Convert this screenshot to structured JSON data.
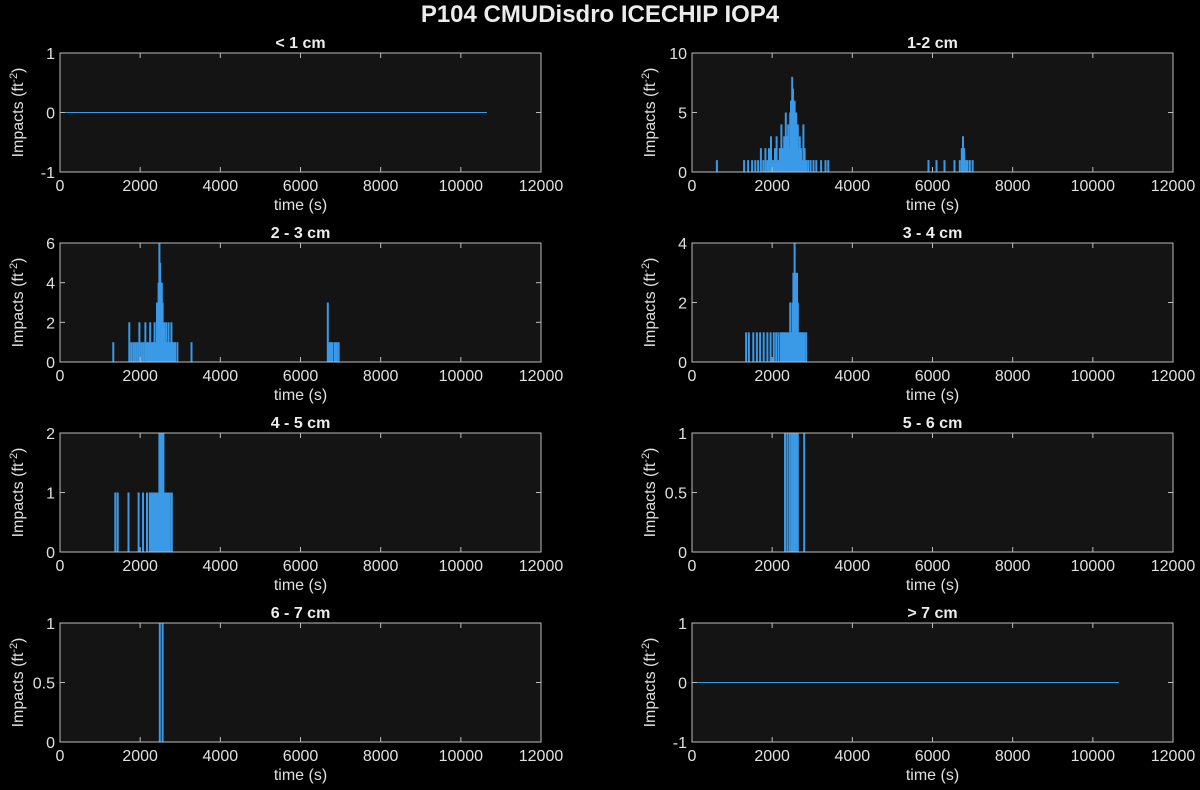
{
  "title": "P104 CMUDisdro ICECHIP IOP4",
  "colors": {
    "background": "#000000",
    "axes_bg": "#141414",
    "axis": "#bcbcbc",
    "bar": "#3a9ae8",
    "text": "#e0e0e0"
  },
  "chart_data": [
    {
      "type": "bar",
      "title": "< 1 cm",
      "xlabel": "time (s)",
      "ylabel": "Impacts",
      "ylabel_unit_base": "ft",
      "ylabel_unit_exp": "-2",
      "xlim": [
        0,
        12000
      ],
      "ylim": [
        -1,
        1
      ],
      "xticks": [
        0,
        2000,
        4000,
        6000,
        8000,
        10000,
        12000
      ],
      "yticks": [
        -1,
        0,
        1
      ],
      "baseline_end": 10650,
      "values": []
    },
    {
      "type": "bar",
      "title": "1-2 cm",
      "xlabel": "time (s)",
      "ylabel": "Impacts",
      "ylabel_unit_base": "ft",
      "ylabel_unit_exp": "-2",
      "xlim": [
        0,
        12000
      ],
      "ylim": [
        0,
        10
      ],
      "xticks": [
        0,
        2000,
        4000,
        6000,
        8000,
        10000,
        12000
      ],
      "yticks": [
        0,
        5,
        10
      ],
      "values": [
        [
          620,
          1
        ],
        [
          1300,
          1
        ],
        [
          1400,
          1
        ],
        [
          1500,
          1
        ],
        [
          1580,
          1
        ],
        [
          1650,
          1
        ],
        [
          1720,
          2
        ],
        [
          1780,
          1
        ],
        [
          1830,
          2
        ],
        [
          1880,
          1
        ],
        [
          1920,
          2
        ],
        [
          1970,
          3
        ],
        [
          2020,
          1
        ],
        [
          2070,
          2
        ],
        [
          2110,
          3
        ],
        [
          2150,
          1
        ],
        [
          2190,
          2
        ],
        [
          2230,
          4
        ],
        [
          2270,
          2
        ],
        [
          2300,
          3
        ],
        [
          2340,
          5
        ],
        [
          2370,
          3
        ],
        [
          2400,
          4
        ],
        [
          2420,
          2
        ],
        [
          2450,
          5
        ],
        [
          2470,
          6
        ],
        [
          2500,
          8
        ],
        [
          2520,
          7
        ],
        [
          2540,
          5
        ],
        [
          2560,
          6
        ],
        [
          2580,
          4
        ],
        [
          2600,
          5
        ],
        [
          2620,
          3
        ],
        [
          2640,
          4
        ],
        [
          2660,
          2
        ],
        [
          2690,
          3
        ],
        [
          2720,
          2
        ],
        [
          2750,
          1
        ],
        [
          2780,
          4
        ],
        [
          2810,
          2
        ],
        [
          2850,
          1
        ],
        [
          2900,
          1
        ],
        [
          2960,
          1
        ],
        [
          3030,
          1
        ],
        [
          3100,
          1
        ],
        [
          3220,
          1
        ],
        [
          3330,
          1
        ],
        [
          3400,
          1
        ],
        [
          5900,
          1
        ],
        [
          6100,
          1
        ],
        [
          6300,
          1
        ],
        [
          6550,
          1
        ],
        [
          6680,
          1
        ],
        [
          6730,
          2
        ],
        [
          6760,
          3
        ],
        [
          6790,
          2
        ],
        [
          6830,
          1
        ],
        [
          6870,
          1
        ],
        [
          6930,
          1
        ],
        [
          7000,
          1
        ]
      ]
    },
    {
      "type": "bar",
      "title": "2 - 3 cm",
      "xlabel": "time (s)",
      "ylabel": "Impacts",
      "ylabel_unit_base": "ft",
      "ylabel_unit_exp": "-2",
      "xlim": [
        0,
        12000
      ],
      "ylim": [
        0,
        6
      ],
      "xticks": [
        0,
        2000,
        4000,
        6000,
        8000,
        10000,
        12000
      ],
      "yticks": [
        0,
        2,
        4,
        6
      ],
      "values": [
        [
          1330,
          1
        ],
        [
          1730,
          2
        ],
        [
          1780,
          1
        ],
        [
          1830,
          1
        ],
        [
          1880,
          1
        ],
        [
          1930,
          1
        ],
        [
          1980,
          2
        ],
        [
          2030,
          1
        ],
        [
          2080,
          1
        ],
        [
          2130,
          2
        ],
        [
          2170,
          1
        ],
        [
          2210,
          1
        ],
        [
          2250,
          2
        ],
        [
          2290,
          1
        ],
        [
          2320,
          1
        ],
        [
          2360,
          2
        ],
        [
          2390,
          1
        ],
        [
          2420,
          3
        ],
        [
          2440,
          2
        ],
        [
          2460,
          4
        ],
        [
          2480,
          6
        ],
        [
          2500,
          5
        ],
        [
          2520,
          3
        ],
        [
          2540,
          4
        ],
        [
          2560,
          3
        ],
        [
          2580,
          2
        ],
        [
          2600,
          2
        ],
        [
          2620,
          1
        ],
        [
          2650,
          2
        ],
        [
          2680,
          1
        ],
        [
          2710,
          2
        ],
        [
          2740,
          1
        ],
        [
          2780,
          2
        ],
        [
          2820,
          1
        ],
        [
          2870,
          1
        ],
        [
          2930,
          1
        ],
        [
          3280,
          1
        ],
        [
          6680,
          3
        ],
        [
          6720,
          1
        ],
        [
          6760,
          1
        ],
        [
          6800,
          1
        ],
        [
          6860,
          1
        ],
        [
          6900,
          1
        ],
        [
          6950,
          1
        ]
      ]
    },
    {
      "type": "bar",
      "title": "3 - 4 cm",
      "xlabel": "time (s)",
      "ylabel": "Impacts",
      "ylabel_unit_base": "ft",
      "ylabel_unit_exp": "-2",
      "xlim": [
        0,
        12000
      ],
      "ylim": [
        0,
        4
      ],
      "xticks": [
        0,
        2000,
        4000,
        6000,
        8000,
        10000,
        12000
      ],
      "yticks": [
        0,
        2,
        4
      ],
      "values": [
        [
          1350,
          1
        ],
        [
          1420,
          1
        ],
        [
          1530,
          1
        ],
        [
          1620,
          1
        ],
        [
          1700,
          1
        ],
        [
          1790,
          1
        ],
        [
          1880,
          1
        ],
        [
          1960,
          1
        ],
        [
          2040,
          1
        ],
        [
          2100,
          1
        ],
        [
          2160,
          1
        ],
        [
          2220,
          1
        ],
        [
          2260,
          1
        ],
        [
          2300,
          1
        ],
        [
          2340,
          1
        ],
        [
          2380,
          1
        ],
        [
          2420,
          1
        ],
        [
          2450,
          2
        ],
        [
          2480,
          1
        ],
        [
          2510,
          2
        ],
        [
          2530,
          3
        ],
        [
          2560,
          4
        ],
        [
          2580,
          3
        ],
        [
          2600,
          2
        ],
        [
          2620,
          3
        ],
        [
          2640,
          2
        ],
        [
          2660,
          1
        ],
        [
          2690,
          1
        ],
        [
          2720,
          1
        ],
        [
          2760,
          1
        ],
        [
          2800,
          1
        ],
        [
          2850,
          1
        ]
      ]
    },
    {
      "type": "bar",
      "title": "4 - 5 cm",
      "xlabel": "time (s)",
      "ylabel": "Impacts",
      "ylabel_unit_base": "ft",
      "ylabel_unit_exp": "-2",
      "xlim": [
        0,
        12000
      ],
      "ylim": [
        0,
        2
      ],
      "xticks": [
        0,
        2000,
        4000,
        6000,
        8000,
        10000,
        12000
      ],
      "yticks": [
        0,
        1,
        2
      ],
      "values": [
        [
          1380,
          1
        ],
        [
          1440,
          1
        ],
        [
          1710,
          1
        ],
        [
          1960,
          1
        ],
        [
          2070,
          1
        ],
        [
          2170,
          1
        ],
        [
          2240,
          1
        ],
        [
          2280,
          1
        ],
        [
          2320,
          1
        ],
        [
          2360,
          1
        ],
        [
          2400,
          1
        ],
        [
          2440,
          1
        ],
        [
          2480,
          2
        ],
        [
          2500,
          1
        ],
        [
          2520,
          2
        ],
        [
          2540,
          2
        ],
        [
          2560,
          1
        ],
        [
          2580,
          2
        ],
        [
          2620,
          1
        ],
        [
          2660,
          1
        ],
        [
          2700,
          1
        ],
        [
          2740,
          1
        ],
        [
          2790,
          1
        ]
      ]
    },
    {
      "type": "bar",
      "title": "5 - 6 cm",
      "xlabel": "time (s)",
      "ylabel": "Impacts",
      "ylabel_unit_base": "ft",
      "ylabel_unit_exp": "-2",
      "xlim": [
        0,
        12000
      ],
      "ylim": [
        0,
        1
      ],
      "xticks": [
        0,
        2000,
        4000,
        6000,
        8000,
        10000,
        12000
      ],
      "yticks": [
        0,
        0.5,
        1
      ],
      "values": [
        [
          2320,
          1
        ],
        [
          2380,
          1
        ],
        [
          2440,
          1
        ],
        [
          2490,
          1
        ],
        [
          2520,
          1
        ],
        [
          2560,
          1
        ],
        [
          2600,
          1
        ],
        [
          2640,
          1
        ],
        [
          2800,
          1
        ]
      ]
    },
    {
      "type": "bar",
      "title": "6 - 7 cm",
      "xlabel": "time (s)",
      "ylabel": "Impacts",
      "ylabel_unit_base": "ft",
      "ylabel_unit_exp": "-2",
      "xlim": [
        0,
        12000
      ],
      "ylim": [
        0,
        1
      ],
      "xticks": [
        0,
        2000,
        4000,
        6000,
        8000,
        10000,
        12000
      ],
      "yticks": [
        0,
        0.5,
        1
      ],
      "values": [
        [
          2490,
          1
        ],
        [
          2560,
          1
        ]
      ]
    },
    {
      "type": "bar",
      "title": "> 7 cm",
      "xlabel": "time (s)",
      "ylabel": "Impacts",
      "ylabel_unit_base": "ft",
      "ylabel_unit_exp": "-2",
      "xlim": [
        0,
        12000
      ],
      "ylim": [
        -1,
        1
      ],
      "xticks": [
        0,
        2000,
        4000,
        6000,
        8000,
        10000,
        12000
      ],
      "yticks": [
        -1,
        0,
        1
      ],
      "baseline_end": 10650,
      "values": []
    }
  ]
}
